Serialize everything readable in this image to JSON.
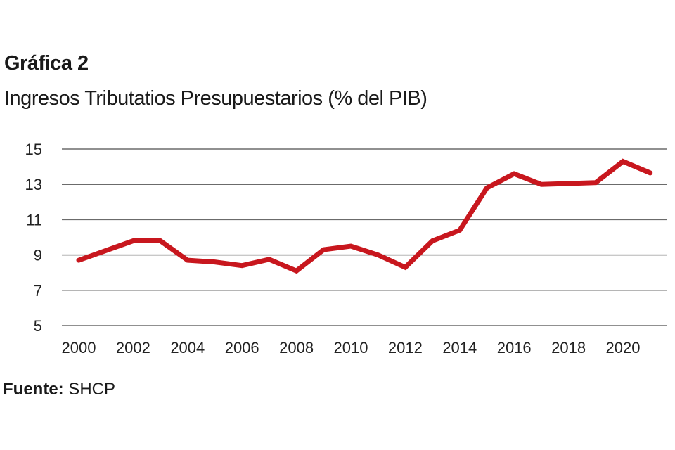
{
  "chart_data": {
    "type": "line",
    "title": "Gráfica 2",
    "subtitle": "Ingresos Tributatios Presupuestarios (% del PIB)",
    "xlabel": "",
    "ylabel": "",
    "x": [
      2000,
      2001,
      2002,
      2003,
      2004,
      2005,
      2006,
      2007,
      2008,
      2009,
      2010,
      2011,
      2012,
      2013,
      2014,
      2015,
      2016,
      2017,
      2018,
      2019,
      2020,
      2021
    ],
    "series": [
      {
        "values": [
          8.7,
          9.25,
          9.8,
          9.8,
          8.7,
          8.6,
          8.4,
          8.75,
          8.1,
          9.3,
          9.5,
          9.0,
          8.3,
          9.8,
          10.4,
          12.8,
          13.6,
          13.0,
          13.05,
          13.1,
          14.3,
          13.65
        ],
        "color": "#c8171e"
      }
    ],
    "ylim": [
      5,
      15
    ],
    "yticks": [
      "5",
      "7",
      "9",
      "11",
      "13",
      "15"
    ],
    "xticks": [
      "2000",
      "2002",
      "2004",
      "2006",
      "2008",
      "2010",
      "2012",
      "2014",
      "2016",
      "2018",
      "2020"
    ],
    "grid": "horizontal",
    "legend": "none"
  },
  "source": {
    "label": "Fuente:",
    "value": "SHCP"
  }
}
